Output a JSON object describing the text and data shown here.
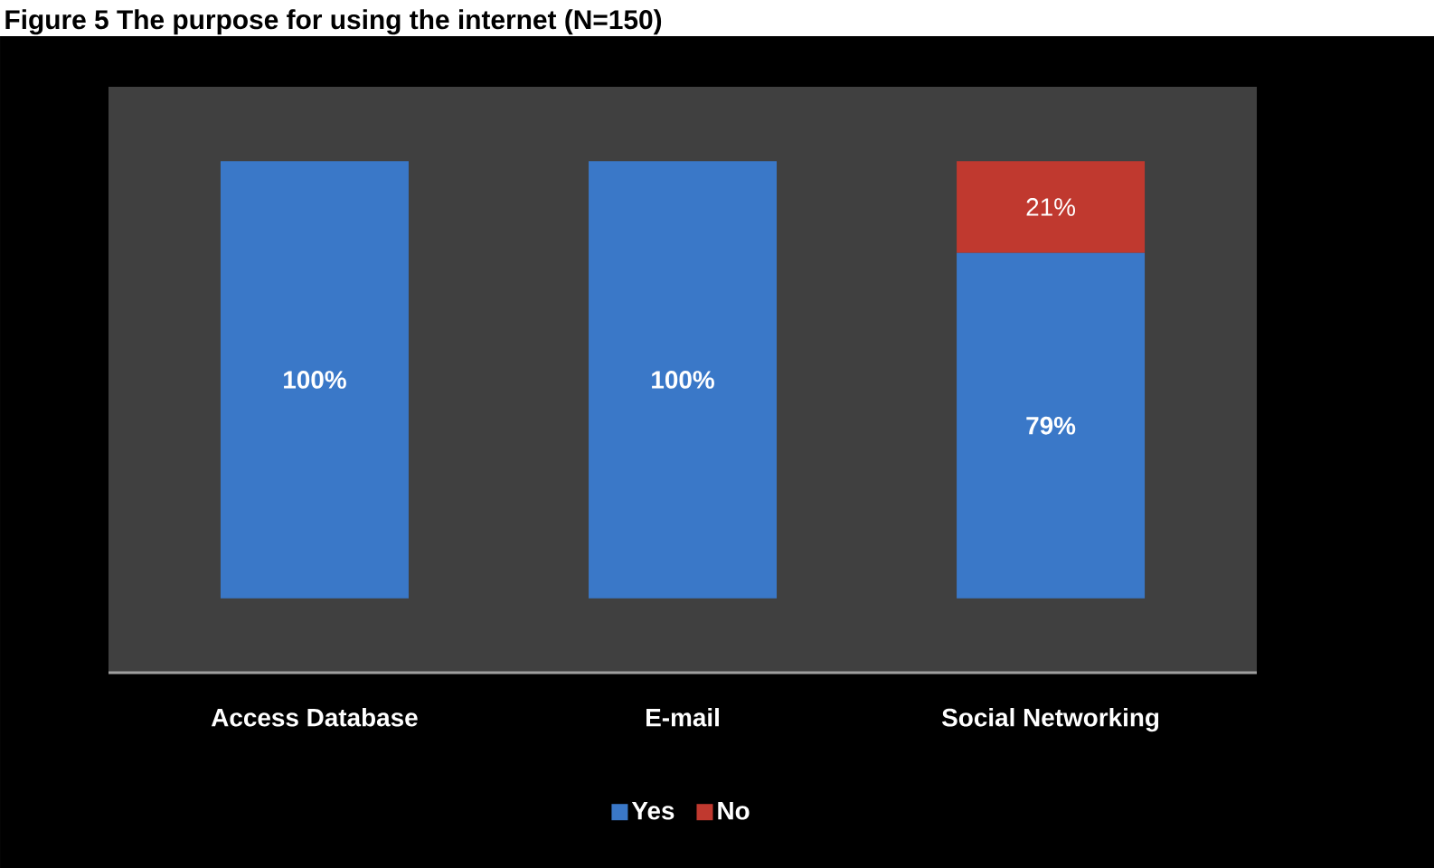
{
  "chart_data": {
    "type": "bar",
    "title": "Figure 5 The purpose for using the internet (N=150)",
    "categories": [
      "Access Database",
      "E-mail",
      "Social Networking"
    ],
    "stacked": true,
    "series": [
      {
        "name": "Yes",
        "color": "#3a78c8",
        "values": [
          100,
          100,
          79
        ],
        "value_labels": [
          "100%",
          "100%",
          "79%"
        ]
      },
      {
        "name": "No",
        "color": "#c0392f",
        "values": [
          0,
          0,
          21
        ],
        "value_labels": [
          null,
          null,
          "21%"
        ]
      }
    ],
    "legend": "bottom",
    "tick_labels": "x"
  }
}
